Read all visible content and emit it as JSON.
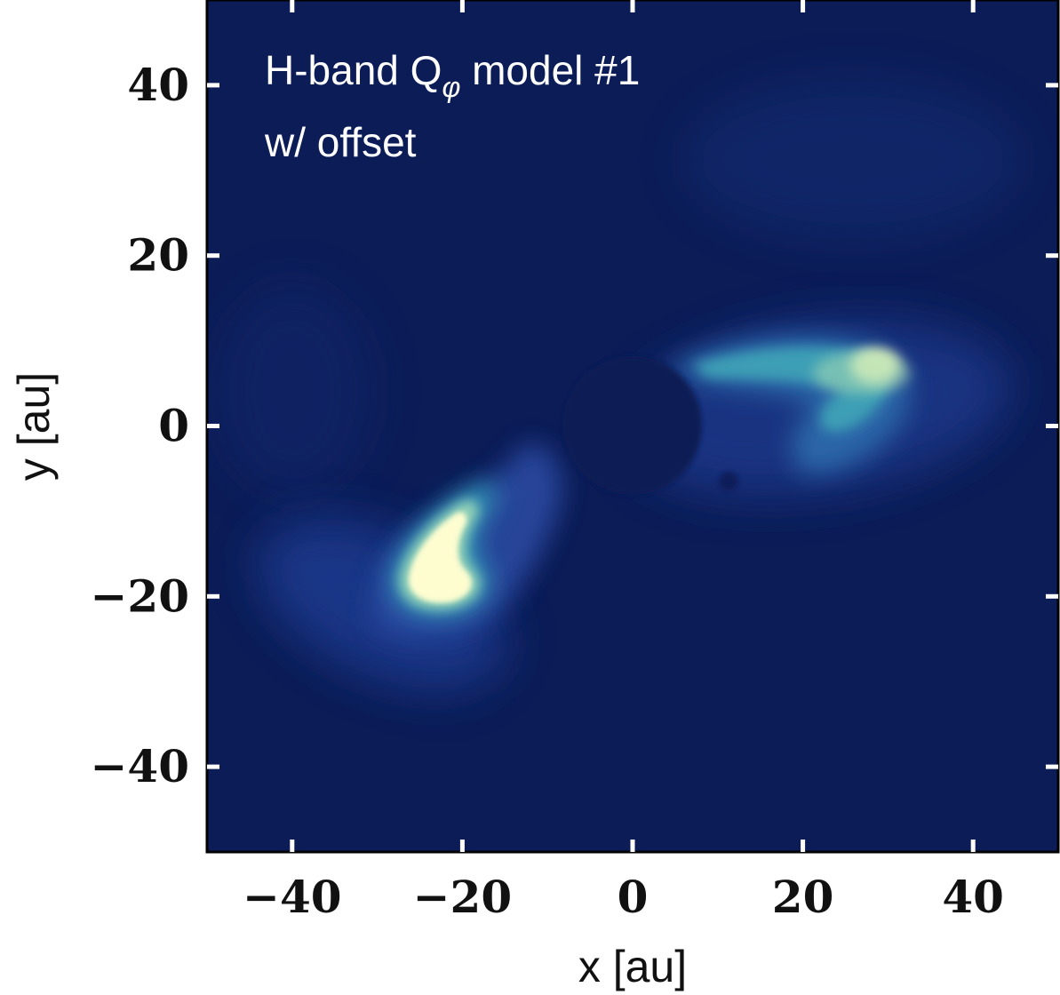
{
  "chart_data": {
    "type": "heatmap",
    "title_line1_prefix": "H-band Q",
    "title_subscript": "φ",
    "title_line1_suffix": " model #1",
    "title_line2": "w/ offset",
    "xlabel": "x [au]",
    "ylabel": "y [au]",
    "xlim": [
      -50,
      50
    ],
    "ylim": [
      -50,
      50
    ],
    "xticks": [
      -40,
      -20,
      0,
      20,
      40
    ],
    "yticks": [
      40,
      20,
      0,
      -20,
      -40
    ],
    "xtick_labels": [
      "−40",
      "−20",
      "0",
      "20",
      "40"
    ],
    "ytick_labels": [
      "40",
      "20",
      "0",
      "−20",
      "−40"
    ],
    "colormap": "YlGnBu_r",
    "background_color": "#0b1c57",
    "features": [
      {
        "name": "south-east arc (brightest)",
        "x": -22,
        "y": -14,
        "level": 1.0
      },
      {
        "name": "north-west arc",
        "x": 25,
        "y": 8,
        "level": 0.75
      }
    ],
    "coronagraph_mask": {
      "x": 0,
      "y": 0,
      "radius": 8
    }
  }
}
